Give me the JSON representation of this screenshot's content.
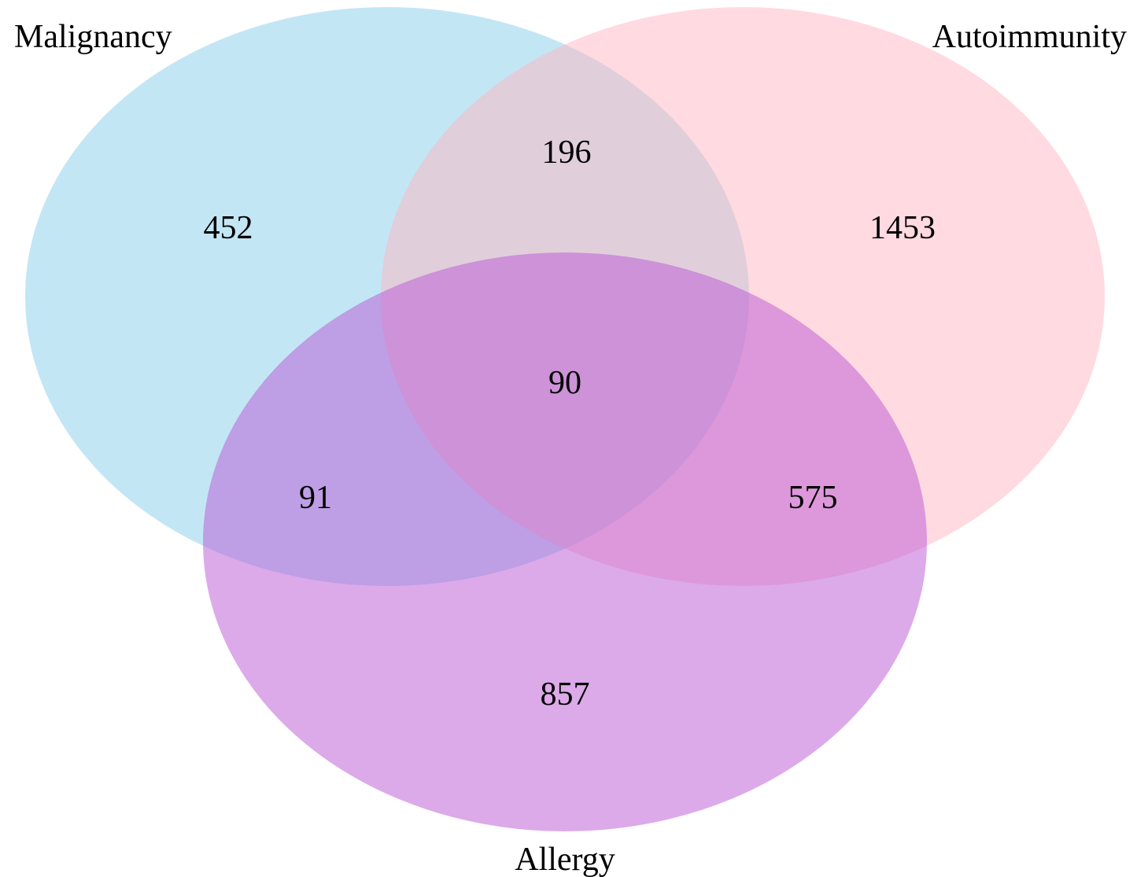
{
  "venn": {
    "sets": [
      {
        "key": "malignancy",
        "label": "Malignancy",
        "color": "#87ceeb"
      },
      {
        "key": "autoimmunity",
        "label": "Autoimmunity",
        "color": "#ffb6c1"
      },
      {
        "key": "allergy",
        "label": "Allergy",
        "color": "#ba55d3"
      }
    ],
    "regions": {
      "malignancy_only": "452",
      "autoimmunity_only": "1453",
      "allergy_only": "857",
      "malignancy_autoimmunity": "196",
      "malignancy_allergy": "91",
      "autoimmunity_allergy": "575",
      "all_three": "90"
    }
  }
}
